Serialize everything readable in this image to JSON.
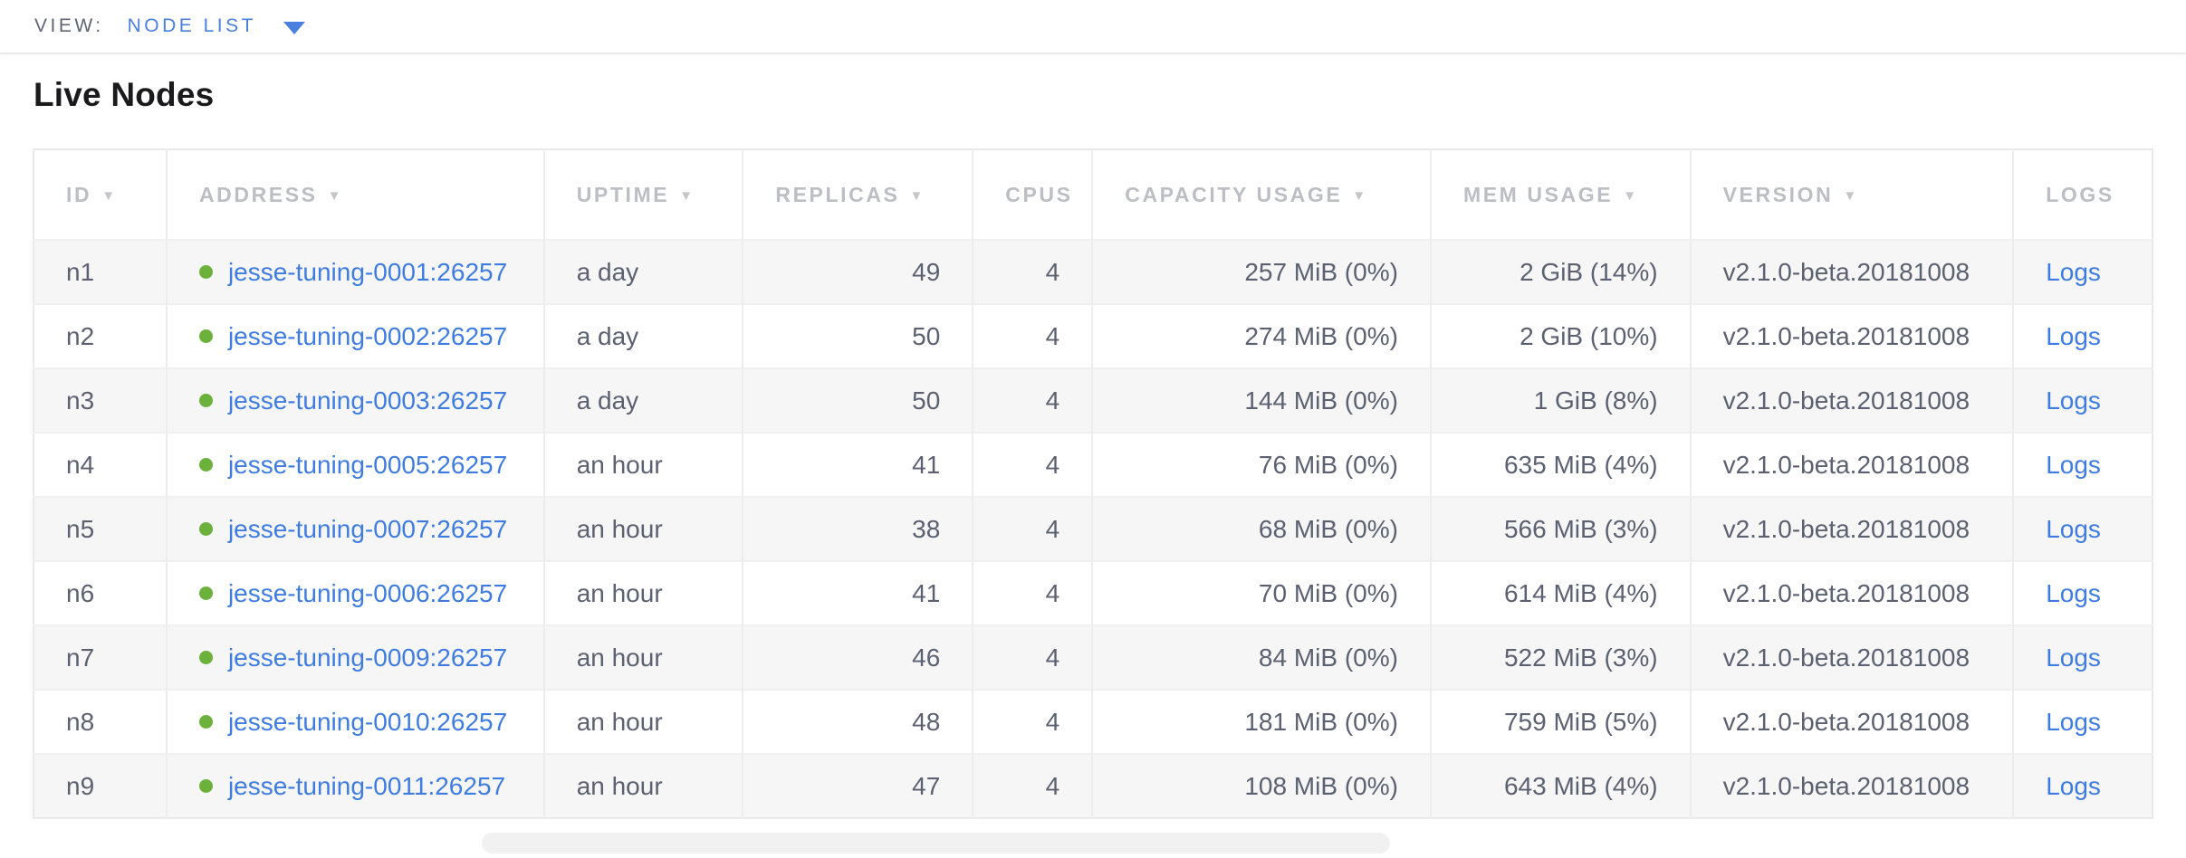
{
  "view_bar": {
    "label": "VIEW:",
    "selected": "NODE LIST"
  },
  "page": {
    "title": "Live Nodes"
  },
  "table": {
    "columns": [
      {
        "key": "id",
        "label": "ID",
        "sortable": true,
        "align": "left"
      },
      {
        "key": "address",
        "label": "ADDRESS",
        "sortable": true,
        "align": "left"
      },
      {
        "key": "uptime",
        "label": "UPTIME",
        "sortable": true,
        "align": "left"
      },
      {
        "key": "replicas",
        "label": "REPLICAS",
        "sortable": true,
        "align": "right"
      },
      {
        "key": "cpus",
        "label": "CPUS",
        "sortable": false,
        "align": "right"
      },
      {
        "key": "capacity",
        "label": "CAPACITY USAGE",
        "sortable": true,
        "align": "right"
      },
      {
        "key": "mem",
        "label": "MEM USAGE",
        "sortable": true,
        "align": "right"
      },
      {
        "key": "version",
        "label": "VERSION",
        "sortable": true,
        "align": "left"
      },
      {
        "key": "logs",
        "label": "LOGS",
        "sortable": false,
        "align": "left"
      }
    ],
    "rows": [
      {
        "id": "n1",
        "status": "live",
        "address": "jesse-tuning-0001:26257",
        "uptime": "a day",
        "replicas": "49",
        "cpus": "4",
        "capacity": "257 MiB (0%)",
        "mem": "2 GiB (14%)",
        "version": "v2.1.0-beta.20181008",
        "logs": "Logs"
      },
      {
        "id": "n2",
        "status": "live",
        "address": "jesse-tuning-0002:26257",
        "uptime": "a day",
        "replicas": "50",
        "cpus": "4",
        "capacity": "274 MiB (0%)",
        "mem": "2 GiB (10%)",
        "version": "v2.1.0-beta.20181008",
        "logs": "Logs"
      },
      {
        "id": "n3",
        "status": "live",
        "address": "jesse-tuning-0003:26257",
        "uptime": "a day",
        "replicas": "50",
        "cpus": "4",
        "capacity": "144 MiB (0%)",
        "mem": "1 GiB (8%)",
        "version": "v2.1.0-beta.20181008",
        "logs": "Logs"
      },
      {
        "id": "n4",
        "status": "live",
        "address": "jesse-tuning-0005:26257",
        "uptime": "an hour",
        "replicas": "41",
        "cpus": "4",
        "capacity": "76 MiB (0%)",
        "mem": "635 MiB (4%)",
        "version": "v2.1.0-beta.20181008",
        "logs": "Logs"
      },
      {
        "id": "n5",
        "status": "live",
        "address": "jesse-tuning-0007:26257",
        "uptime": "an hour",
        "replicas": "38",
        "cpus": "4",
        "capacity": "68 MiB (0%)",
        "mem": "566 MiB (3%)",
        "version": "v2.1.0-beta.20181008",
        "logs": "Logs"
      },
      {
        "id": "n6",
        "status": "live",
        "address": "jesse-tuning-0006:26257",
        "uptime": "an hour",
        "replicas": "41",
        "cpus": "4",
        "capacity": "70 MiB (0%)",
        "mem": "614 MiB (4%)",
        "version": "v2.1.0-beta.20181008",
        "logs": "Logs"
      },
      {
        "id": "n7",
        "status": "live",
        "address": "jesse-tuning-0009:26257",
        "uptime": "an hour",
        "replicas": "46",
        "cpus": "4",
        "capacity": "84 MiB (0%)",
        "mem": "522 MiB (3%)",
        "version": "v2.1.0-beta.20181008",
        "logs": "Logs"
      },
      {
        "id": "n8",
        "status": "live",
        "address": "jesse-tuning-0010:26257",
        "uptime": "an hour",
        "replicas": "48",
        "cpus": "4",
        "capacity": "181 MiB (0%)",
        "mem": "759 MiB (5%)",
        "version": "v2.1.0-beta.20181008",
        "logs": "Logs"
      },
      {
        "id": "n9",
        "status": "live",
        "address": "jesse-tuning-0011:26257",
        "uptime": "an hour",
        "replicas": "47",
        "cpus": "4",
        "capacity": "108 MiB (0%)",
        "mem": "643 MiB (4%)",
        "version": "v2.1.0-beta.20181008",
        "logs": "Logs"
      }
    ]
  },
  "icons": {
    "sort_desc": "▼",
    "dropdown_caret": "chevron-down"
  },
  "colors": {
    "accent_blue": "#4a7fe0",
    "link_blue": "#3f7ce2",
    "live_green": "#6cb13c",
    "header_gray": "#bcbec3",
    "cell_text": "#5b6170",
    "row_stripe": "#f6f6f7",
    "border": "#e9e9ea"
  }
}
